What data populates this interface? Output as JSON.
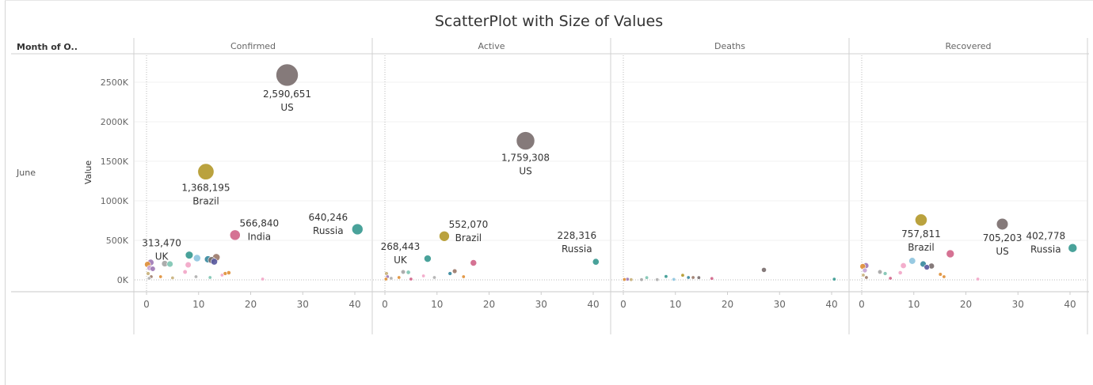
{
  "title": "ScatterPlot with Size of Values",
  "row_header": "Month of O..",
  "row_label": "June",
  "y_axis_title": "Value",
  "chart_data": [
    {
      "type": "scatter",
      "panel": "Confirmed",
      "xlim": [
        -2,
        43
      ],
      "ylim": [
        -100000,
        2850000
      ],
      "x_ticks": [
        0,
        10,
        20,
        30,
        40
      ],
      "y_ticks": [
        0,
        500000,
        1000000,
        1500000,
        2000000,
        2500000
      ],
      "y_tick_labels": [
        "0K",
        "500K",
        "1000K",
        "1500K",
        "2000K",
        "2500K"
      ],
      "grid": true,
      "points": [
        {
          "x": 27,
          "y": 2590651,
          "label": "US",
          "value_label": "2,590,651",
          "color": "#7b6f6f",
          "labeled": true
        },
        {
          "x": 11.4,
          "y": 1368195,
          "label": "Brazil",
          "value_label": "1,368,195",
          "color": "#b49a2e",
          "labeled": true
        },
        {
          "x": 40.5,
          "y": 640246,
          "label": "Russia",
          "value_label": "640,246",
          "color": "#3a9a91",
          "labeled": true
        },
        {
          "x": 17,
          "y": 566840,
          "label": "India",
          "value_label": "566,840",
          "color": "#d1668a",
          "labeled": true
        },
        {
          "x": 8.2,
          "y": 313470,
          "label": "UK",
          "value_label": "313,470",
          "color": "#3a9a91",
          "labeled": true
        },
        {
          "x": 9.7,
          "y": 275000,
          "color": "#8fc5e0"
        },
        {
          "x": 11.8,
          "y": 260000,
          "color": "#3a8aa0"
        },
        {
          "x": 13.4,
          "y": 285000,
          "color": "#9c7b6b"
        },
        {
          "x": 12.5,
          "y": 250000,
          "color": "#7b6f6f"
        },
        {
          "x": 13.0,
          "y": 230000,
          "color": "#5a5aa0"
        },
        {
          "x": 8.0,
          "y": 190000,
          "color": "#f2a7c8"
        },
        {
          "x": 7.4,
          "y": 100000,
          "color": "#f2a7c8"
        },
        {
          "x": 3.5,
          "y": 205000,
          "color": "#a6a6a6"
        },
        {
          "x": 4.5,
          "y": 200000,
          "color": "#7fc6b3"
        },
        {
          "x": 0.2,
          "y": 195000,
          "color": "#e0903a"
        },
        {
          "x": 0.8,
          "y": 220000,
          "color": "#a07ab5"
        },
        {
          "x": 0.6,
          "y": 150000,
          "color": "#c7a5d6"
        },
        {
          "x": 1.2,
          "y": 140000,
          "color": "#a07ab5"
        },
        {
          "x": 0.3,
          "y": 80000,
          "color": "#c9b27d"
        },
        {
          "x": 0.9,
          "y": 40000,
          "color": "#9c7b6b"
        },
        {
          "x": 0.5,
          "y": 20000,
          "color": "#b0b0b0"
        },
        {
          "x": 2.7,
          "y": 40000,
          "color": "#e0903a"
        },
        {
          "x": 5.0,
          "y": 25000,
          "color": "#c9b27d"
        },
        {
          "x": 9.5,
          "y": 40000,
          "color": "#b0b0b0"
        },
        {
          "x": 12.2,
          "y": 30000,
          "color": "#7fc6b3"
        },
        {
          "x": 15.1,
          "y": 80000,
          "color": "#e0903a"
        },
        {
          "x": 15.8,
          "y": 90000,
          "color": "#e0903a"
        },
        {
          "x": 14.5,
          "y": 60000,
          "color": "#f2a7c8"
        },
        {
          "x": 22.3,
          "y": 10000,
          "color": "#f2a7c8"
        }
      ]
    },
    {
      "type": "scatter",
      "panel": "Active",
      "xlim": [
        -2,
        43
      ],
      "ylim": [
        -100000,
        2850000
      ],
      "x_ticks": [
        0,
        10,
        20,
        30,
        40
      ],
      "grid": true,
      "points": [
        {
          "x": 27,
          "y": 1759308,
          "label": "US",
          "value_label": "1,759,308",
          "color": "#7b6f6f",
          "labeled": true
        },
        {
          "x": 11.4,
          "y": 552070,
          "label": "Brazil",
          "value_label": "552,070",
          "color": "#b49a2e",
          "labeled": true
        },
        {
          "x": 8.2,
          "y": 268443,
          "label": "UK",
          "value_label": "268,443",
          "color": "#3a9a91",
          "labeled": true
        },
        {
          "x": 40.5,
          "y": 228316,
          "label": "Russia",
          "value_label": "228,316",
          "color": "#3a9a91",
          "labeled": true
        },
        {
          "x": 17,
          "y": 215000,
          "color": "#d1668a"
        },
        {
          "x": 13.4,
          "y": 110000,
          "color": "#9c7b6b"
        },
        {
          "x": 12.5,
          "y": 80000,
          "color": "#3a8aa0"
        },
        {
          "x": 3.5,
          "y": 100000,
          "color": "#a6a6a6"
        },
        {
          "x": 4.5,
          "y": 95000,
          "color": "#7fc6b3"
        },
        {
          "x": 7.4,
          "y": 50000,
          "color": "#f2a7c8"
        },
        {
          "x": 0.3,
          "y": 80000,
          "color": "#c9b27d"
        },
        {
          "x": 0.5,
          "y": 40000,
          "color": "#a07ab5"
        },
        {
          "x": 0.2,
          "y": 10000,
          "color": "#e0903a"
        },
        {
          "x": 1.2,
          "y": 20000,
          "color": "#b0b0b0"
        },
        {
          "x": 2.7,
          "y": 30000,
          "color": "#e0903a"
        },
        {
          "x": 15.1,
          "y": 40000,
          "color": "#e0903a"
        },
        {
          "x": 9.5,
          "y": 30000,
          "color": "#b0b0b0"
        },
        {
          "x": 5.0,
          "y": 10000,
          "color": "#d1668a"
        }
      ]
    },
    {
      "type": "scatter",
      "panel": "Deaths",
      "xlim": [
        -2,
        43
      ],
      "ylim": [
        -100000,
        2850000
      ],
      "x_ticks": [
        0,
        10,
        20,
        30,
        40
      ],
      "grid": true,
      "points": [
        {
          "x": 27,
          "y": 126000,
          "color": "#7b6f6f"
        },
        {
          "x": 11.4,
          "y": 58000,
          "color": "#b49a2e"
        },
        {
          "x": 8.2,
          "y": 43000,
          "color": "#3a9a91"
        },
        {
          "x": 12.5,
          "y": 30000,
          "color": "#3a8aa0"
        },
        {
          "x": 13.4,
          "y": 30000,
          "color": "#9c7b6b"
        },
        {
          "x": 14.5,
          "y": 28000,
          "color": "#7b6f6f"
        },
        {
          "x": 17,
          "y": 17000,
          "color": "#d1668a"
        },
        {
          "x": 40.5,
          "y": 9000,
          "color": "#3a9a91"
        },
        {
          "x": 4.5,
          "y": 28000,
          "color": "#7fc6b3"
        },
        {
          "x": 0.2,
          "y": 5000,
          "color": "#e0903a"
        },
        {
          "x": 0.8,
          "y": 8000,
          "color": "#a07ab5"
        },
        {
          "x": 1.5,
          "y": 3000,
          "color": "#c9b27d"
        },
        {
          "x": 3.5,
          "y": 3000,
          "color": "#a6a6a6"
        },
        {
          "x": 6.5,
          "y": 3000,
          "color": "#b0b0b0"
        },
        {
          "x": 9.7,
          "y": 6000,
          "color": "#8fc5e0"
        }
      ]
    },
    {
      "type": "scatter",
      "panel": "Recovered",
      "xlim": [
        -2,
        43
      ],
      "ylim": [
        -100000,
        2850000
      ],
      "x_ticks": [
        0,
        10,
        20,
        30,
        40
      ],
      "grid": true,
      "points": [
        {
          "x": 11.4,
          "y": 757811,
          "label": "Brazil",
          "value_label": "757,811",
          "color": "#b49a2e",
          "labeled": true
        },
        {
          "x": 27,
          "y": 705203,
          "label": "US",
          "value_label": "705,203",
          "color": "#7b6f6f",
          "labeled": true
        },
        {
          "x": 40.5,
          "y": 402778,
          "label": "Russia",
          "value_label": "402,778",
          "color": "#3a9a91",
          "labeled": true
        },
        {
          "x": 17,
          "y": 330000,
          "color": "#d1668a"
        },
        {
          "x": 9.7,
          "y": 240000,
          "color": "#8fc5e0"
        },
        {
          "x": 11.8,
          "y": 200000,
          "color": "#3a8aa0"
        },
        {
          "x": 13.4,
          "y": 175000,
          "color": "#7b6f6f"
        },
        {
          "x": 12.5,
          "y": 160000,
          "color": "#5a5aa0"
        },
        {
          "x": 8.0,
          "y": 180000,
          "color": "#f2a7c8"
        },
        {
          "x": 7.4,
          "y": 90000,
          "color": "#f2a7c8"
        },
        {
          "x": 3.5,
          "y": 100000,
          "color": "#a6a6a6"
        },
        {
          "x": 4.5,
          "y": 80000,
          "color": "#7fc6b3"
        },
        {
          "x": 0.2,
          "y": 170000,
          "color": "#e0903a"
        },
        {
          "x": 0.8,
          "y": 180000,
          "color": "#a07ab5"
        },
        {
          "x": 0.6,
          "y": 120000,
          "color": "#c7a5d6"
        },
        {
          "x": 0.3,
          "y": 60000,
          "color": "#c9b27d"
        },
        {
          "x": 0.9,
          "y": 30000,
          "color": "#9c7b6b"
        },
        {
          "x": 15.1,
          "y": 70000,
          "color": "#e0903a"
        },
        {
          "x": 15.8,
          "y": 40000,
          "color": "#e0903a"
        },
        {
          "x": 22.3,
          "y": 10000,
          "color": "#f2a7c8"
        },
        {
          "x": 5.5,
          "y": 20000,
          "color": "#d1668a"
        }
      ]
    }
  ]
}
